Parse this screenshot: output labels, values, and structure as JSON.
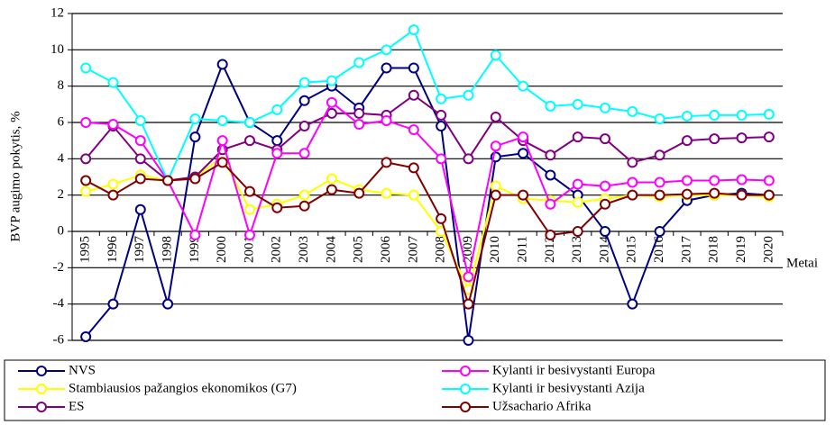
{
  "chart_data": {
    "type": "line",
    "y_label": "BVP augimo pokytis, %",
    "x_label": "Metai",
    "categories": [
      "1995",
      "1996",
      "1997",
      "1998",
      "1999",
      "2000",
      "2001",
      "2002",
      "2003",
      "2004",
      "2005",
      "2006",
      "2007",
      "2008",
      "2009",
      "2010",
      "2011",
      "2012",
      "2013",
      "2014",
      "2015",
      "2016",
      "2017",
      "2018",
      "2019",
      "2020"
    ],
    "ylim": [
      -6,
      12
    ],
    "yticks": [
      -6,
      -4,
      -2,
      0,
      2,
      4,
      6,
      8,
      10,
      12
    ],
    "grid": true,
    "legend": "bottom",
    "series": [
      {
        "name": "NVS",
        "color": "#000080",
        "values": [
          -5.8,
          -4,
          1.2,
          -4,
          5.2,
          9.2,
          6.0,
          5.0,
          7.2,
          8.0,
          6.8,
          9.0,
          9.0,
          5.8,
          -6.0,
          4.1,
          4.3,
          3.1,
          2.0,
          0.0,
          -4.0,
          0.0,
          1.7,
          2.0,
          2.1,
          2.0
        ]
      },
      {
        "name": "Stambiausios pažangios ekonomikos (G7)",
        "color": "#ffff00",
        "values": [
          2.2,
          2.6,
          3.1,
          2.8,
          3.0,
          4.1,
          1.2,
          1.5,
          2.0,
          2.9,
          2.3,
          2.1,
          2.0,
          0.0,
          -3.2,
          2.5,
          1.8,
          1.7,
          1.6,
          1.8,
          2.0,
          1.9,
          2.0,
          2.0,
          2.0,
          1.9
        ]
      },
      {
        "name": "ES",
        "color": "#800080",
        "values": [
          4.0,
          5.8,
          4.0,
          2.8,
          3.0,
          4.5,
          5.0,
          4.5,
          5.8,
          6.5,
          6.5,
          6.4,
          7.5,
          6.4,
          4.0,
          6.3,
          5.0,
          4.2,
          5.2,
          5.1,
          3.8,
          4.2,
          5.0,
          5.1,
          5.15,
          5.2
        ]
      },
      {
        "name": "Kylanti ir besivystanti Europa",
        "color": "#ff00ff",
        "values": [
          6.0,
          5.9,
          5.0,
          2.8,
          -0.2,
          5.0,
          -0.2,
          4.3,
          4.3,
          7.1,
          5.9,
          6.1,
          5.6,
          4.0,
          -2.5,
          4.7,
          5.2,
          1.5,
          2.6,
          2.5,
          2.7,
          2.7,
          2.8,
          2.8,
          2.85,
          2.8
        ]
      },
      {
        "name": "Kylanti ir besivystanti Azija",
        "color": "#00ffff",
        "values": [
          9.0,
          8.2,
          6.1,
          2.8,
          6.2,
          6.1,
          6.0,
          6.7,
          8.2,
          8.3,
          9.3,
          10.0,
          11.1,
          7.3,
          7.5,
          9.7,
          8.0,
          6.9,
          7.0,
          6.8,
          6.6,
          6.2,
          6.35,
          6.4,
          6.4,
          6.45
        ]
      },
      {
        "name": "Užsachario Afrika",
        "color": "#800000",
        "values": [
          2.8,
          2.0,
          2.9,
          2.8,
          2.9,
          3.8,
          2.2,
          1.3,
          1.4,
          2.3,
          2.1,
          3.8,
          3.5,
          0.7,
          -4.0,
          2.0,
          2.0,
          -0.2,
          0.0,
          1.5,
          2.0,
          2.0,
          2.05,
          2.1,
          2.0,
          2.0
        ]
      }
    ]
  }
}
